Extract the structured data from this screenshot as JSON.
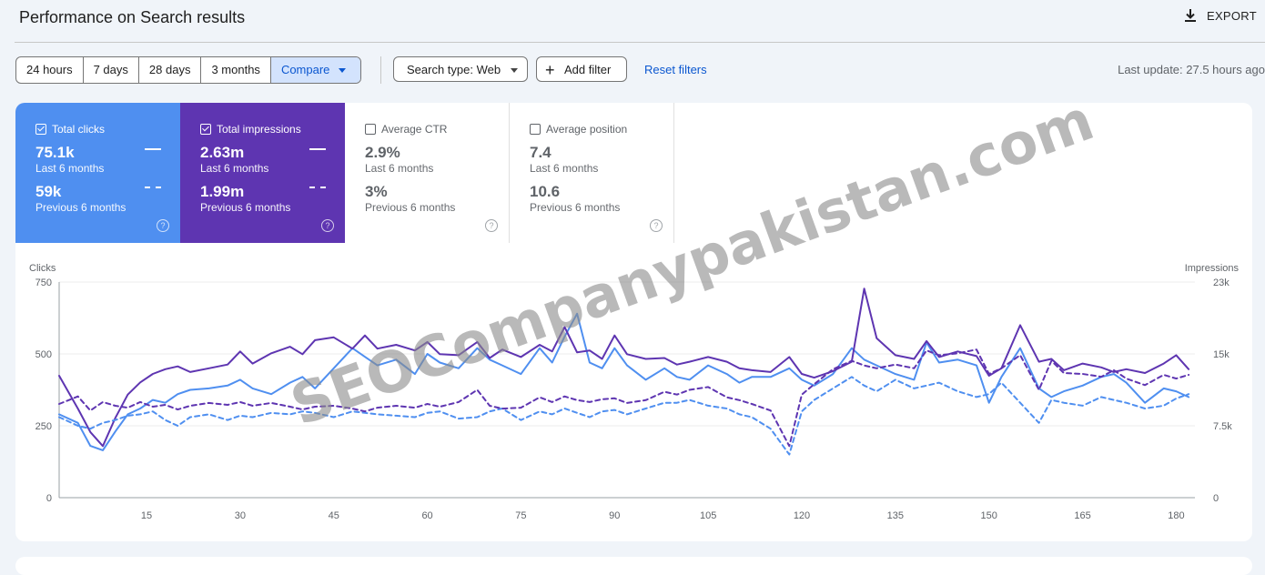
{
  "header": {
    "title": "Performance on Search results",
    "export_label": "EXPORT"
  },
  "toolbar": {
    "ranges": [
      "24 hours",
      "7 days",
      "28 days",
      "3 months"
    ],
    "compare_label": "Compare",
    "search_type_label": "Search type: Web",
    "add_filter_label": "Add filter",
    "reset_label": "Reset filters",
    "last_update": "Last update: 27.5 hours ago"
  },
  "metrics": [
    {
      "label": "Total clicks",
      "checked": true,
      "value": "75.1k",
      "period": "Last 6 months",
      "prev_value": "59k",
      "prev_period": "Previous 6 months"
    },
    {
      "label": "Total impressions",
      "checked": true,
      "value": "2.63m",
      "period": "Last 6 months",
      "prev_value": "1.99m",
      "prev_period": "Previous 6 months"
    },
    {
      "label": "Average CTR",
      "checked": false,
      "value": "2.9%",
      "period": "Last 6 months",
      "prev_value": "3%",
      "prev_period": "Previous 6 months"
    },
    {
      "label": "Average position",
      "checked": false,
      "value": "7.4",
      "period": "Last 6 months",
      "prev_value": "10.6",
      "prev_period": "Previous 6 months"
    }
  ],
  "help_glyph": "?",
  "colors": {
    "clicks": "#4f8ff0",
    "impressions": "#5e35b1",
    "accent": "#0b57d0",
    "compare_bg": "#d3e3fd"
  },
  "watermark": "SEOCompanypakistan.com",
  "chart_data": {
    "type": "line",
    "ylabel_left": "Clicks",
    "ylabel_right": "Impressions",
    "y_left_ticks": [
      "0",
      "250",
      "500",
      "750"
    ],
    "y_right_ticks": [
      "0",
      "7.5k",
      "15k",
      "23k"
    ],
    "ylim_left": [
      0,
      750
    ],
    "ylim_right": [
      0,
      23000
    ],
    "x_ticks": [
      "15",
      "30",
      "45",
      "60",
      "75",
      "90",
      "105",
      "120",
      "135",
      "150",
      "165",
      "180"
    ],
    "xlim": [
      1,
      183
    ],
    "x": [
      1,
      4,
      6,
      8,
      10,
      12,
      14,
      16,
      18,
      20,
      22,
      25,
      28,
      30,
      32,
      35,
      38,
      40,
      42,
      45,
      48,
      50,
      52,
      55,
      58,
      60,
      62,
      65,
      68,
      70,
      72,
      75,
      78,
      80,
      82,
      84,
      86,
      88,
      90,
      92,
      95,
      98,
      100,
      102,
      105,
      108,
      110,
      112,
      115,
      118,
      120,
      122,
      125,
      128,
      130,
      132,
      135,
      138,
      140,
      142,
      145,
      148,
      150,
      152,
      155,
      158,
      160,
      162,
      165,
      168,
      170,
      172,
      175,
      178,
      180,
      182
    ],
    "series": [
      {
        "name": "Total clicks",
        "axis": "left",
        "style": "solid",
        "color": "#4f8ff0",
        "values": [
          290,
          260,
          180,
          165,
          230,
          290,
          310,
          340,
          330,
          360,
          375,
          380,
          390,
          410,
          380,
          360,
          400,
          420,
          380,
          450,
          520,
          490,
          460,
          480,
          430,
          500,
          470,
          450,
          520,
          480,
          460,
          430,
          520,
          470,
          560,
          640,
          470,
          450,
          520,
          460,
          410,
          450,
          420,
          410,
          460,
          430,
          400,
          420,
          420,
          450,
          410,
          390,
          430,
          520,
          480,
          460,
          430,
          410,
          540,
          470,
          480,
          460,
          330,
          420,
          520,
          380,
          350,
          370,
          390,
          420,
          430,
          400,
          330,
          380,
          370,
          350
        ]
      },
      {
        "name": "Total impressions",
        "axis": "right",
        "style": "solid",
        "color": "#5e35b1",
        "values": [
          13000,
          9500,
          7000,
          5500,
          8500,
          11000,
          12300,
          13200,
          13700,
          14000,
          13400,
          13800,
          14200,
          15600,
          14300,
          15400,
          16100,
          15300,
          16800,
          17100,
          15900,
          17300,
          15900,
          16300,
          15700,
          16600,
          15300,
          15200,
          16600,
          14900,
          15800,
          15000,
          16300,
          15600,
          18200,
          15500,
          15700,
          14800,
          17300,
          15300,
          14800,
          14900,
          14200,
          14500,
          15000,
          14500,
          13800,
          13600,
          13400,
          15000,
          13200,
          12800,
          13500,
          14500,
          22300,
          17000,
          15200,
          14800,
          16700,
          15000,
          15600,
          15100,
          13000,
          13800,
          18400,
          14500,
          14800,
          13600,
          14300,
          13900,
          13400,
          13700,
          13300,
          14300,
          15200,
          13700
        ]
      },
      {
        "name": "Previous clicks",
        "axis": "left",
        "style": "dashed",
        "color": "#4f8ff0",
        "values": [
          280,
          250,
          240,
          260,
          270,
          285,
          290,
          300,
          270,
          250,
          280,
          290,
          270,
          285,
          280,
          295,
          290,
          300,
          295,
          280,
          300,
          295,
          290,
          285,
          280,
          295,
          300,
          275,
          280,
          300,
          310,
          270,
          300,
          290,
          310,
          295,
          280,
          300,
          305,
          290,
          310,
          330,
          330,
          340,
          320,
          310,
          290,
          280,
          240,
          150,
          300,
          340,
          380,
          420,
          390,
          370,
          410,
          380,
          390,
          400,
          370,
          350,
          360,
          400,
          330,
          260,
          340,
          330,
          320,
          350,
          340,
          330,
          310,
          320,
          345,
          360
        ]
      },
      {
        "name": "Previous impressions",
        "axis": "right",
        "style": "dashed",
        "color": "#5e35b1",
        "values": [
          10000,
          10800,
          9300,
          10200,
          9800,
          9600,
          10200,
          9700,
          9900,
          9400,
          9800,
          10100,
          9900,
          10200,
          9800,
          10100,
          9700,
          9400,
          9700,
          9800,
          9500,
          9200,
          9600,
          9800,
          9600,
          10000,
          9700,
          10200,
          11500,
          9800,
          9500,
          9600,
          10700,
          10200,
          10800,
          10400,
          10200,
          10500,
          10600,
          10100,
          10400,
          11300,
          11000,
          11500,
          11800,
          10700,
          10400,
          10000,
          9300,
          5500,
          11000,
          12100,
          13700,
          14600,
          14100,
          13800,
          14200,
          13800,
          15700,
          15200,
          15400,
          15800,
          13200,
          13800,
          15200,
          11500,
          14600,
          13300,
          13200,
          12900,
          13600,
          12700,
          12000,
          13100,
          12700,
          13100
        ]
      }
    ]
  }
}
